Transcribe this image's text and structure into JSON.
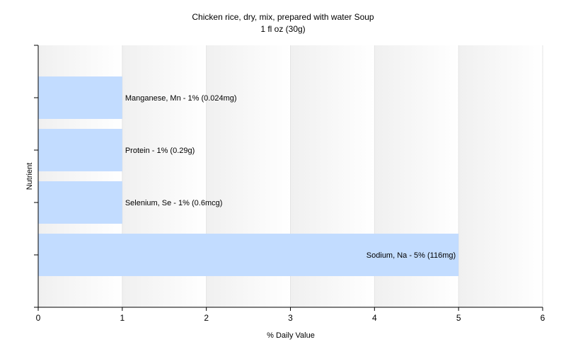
{
  "chart_data": {
    "type": "bar",
    "orientation": "horizontal",
    "title": "Chicken rice, dry, mix, prepared with water Soup",
    "subtitle": "1 fl oz (30g)",
    "xlabel": "% Daily Value",
    "ylabel": "Nutrient",
    "xlim": [
      0,
      6
    ],
    "xticks": [
      "0",
      "1",
      "2",
      "3",
      "4",
      "5",
      "6"
    ],
    "grid": true,
    "bar_color": "#c2dcff",
    "categories": [
      "Manganese, Mn",
      "Protein",
      "Selenium, Se",
      "Sodium, Na"
    ],
    "values": [
      1,
      1,
      1,
      5
    ],
    "labels": [
      "Manganese, Mn - 1% (0.024mg)",
      "Protein - 1% (0.29g)",
      "Selenium, Se - 1% (0.6mcg)",
      "Sodium, Na - 5% (116mg)"
    ]
  }
}
